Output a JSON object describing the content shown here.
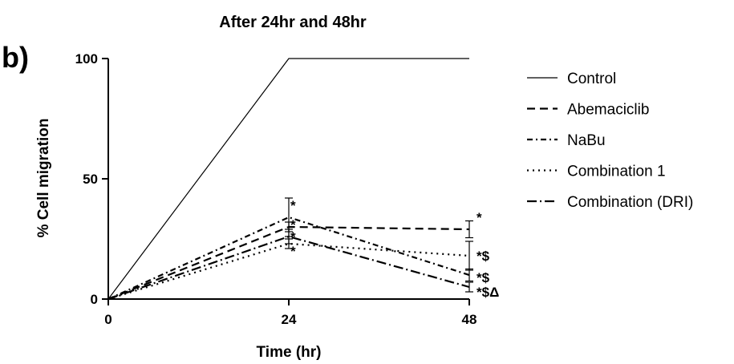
{
  "chart_data": {
    "type": "line",
    "title": "After 24hr and 48hr",
    "panel_label": "b)",
    "xlabel": "Time (hr)",
    "ylabel": "% Cell migration",
    "x": [
      0,
      24,
      48
    ],
    "x_ticks": [
      "0",
      "24",
      "48"
    ],
    "y_ticks": [
      "0",
      "50",
      "100"
    ],
    "xlim": [
      0,
      48
    ],
    "ylim": [
      0,
      100
    ],
    "grid": false,
    "legend_position": "right",
    "series": [
      {
        "name": "Control",
        "dash": "solid",
        "values": [
          0,
          100,
          100
        ],
        "err": [
          0,
          0,
          0
        ]
      },
      {
        "name": "Abemaciclib",
        "dash": "dash",
        "values": [
          0,
          30,
          29
        ],
        "err": [
          0,
          2,
          3.5
        ]
      },
      {
        "name": "NaBu",
        "dash": "dashdot2",
        "values": [
          0,
          34,
          10
        ],
        "err": [
          0,
          8,
          2.5
        ]
      },
      {
        "name": "Combination 1",
        "dash": "dot",
        "values": [
          0,
          23,
          18
        ],
        "err": [
          0,
          2,
          6
        ]
      },
      {
        "name": "Combination (DRI)",
        "dash": "dashdot",
        "values": [
          0,
          26,
          5
        ],
        "err": [
          0,
          3,
          2
        ]
      }
    ],
    "annotations": [
      {
        "x": 24,
        "y": 39,
        "text": "*"
      },
      {
        "x": 24,
        "y": 31,
        "text": "*"
      },
      {
        "x": 24,
        "y": 26,
        "text": "*"
      },
      {
        "x": 24,
        "y": 20,
        "text": "*"
      },
      {
        "x": 48,
        "y": 34,
        "text": "*"
      },
      {
        "x": 48,
        "y": 18,
        "text": "*$"
      },
      {
        "x": 48,
        "y": 9,
        "text": "*$"
      },
      {
        "x": 48,
        "y": 3,
        "text": "*$Δ"
      }
    ]
  }
}
